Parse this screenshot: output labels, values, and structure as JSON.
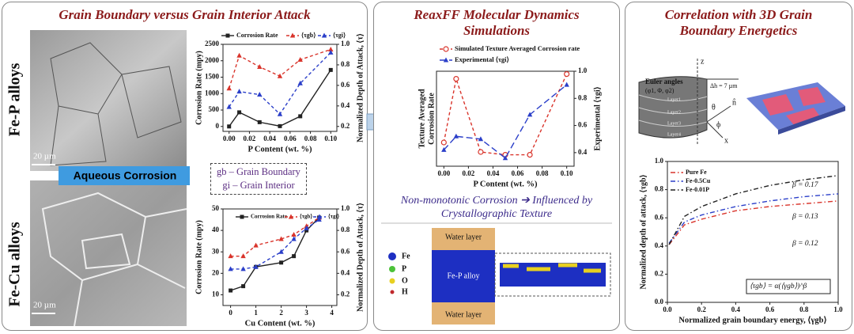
{
  "left": {
    "title": "Grain Boundary versus Grain Interior Attack",
    "micrographs": [
      {
        "label": "Fe-P alloys",
        "scale_bar": "20 µm"
      },
      {
        "label": "Fe-Cu alloys",
        "scale_bar": "20 µm"
      }
    ],
    "banner": "Aqueous Corrosion",
    "key": [
      "gb – Grain Boundary",
      "gi – Grain Interior"
    ],
    "chart_fe_p": {
      "type": "line",
      "x": [
        0,
        0.01,
        0.03,
        0.05,
        0.07,
        0.1
      ],
      "xlabel": "P Content (wt. %)",
      "ylabel": "Corrosion Rate (mpy)",
      "y2label": "Normalized Depth of Attack, ⟨τ⟩",
      "xlim": [
        -0.006,
        0.106
      ],
      "xticks": [
        {
          "value": 0,
          "label": "0.00"
        },
        {
          "value": 0.02,
          "label": "0.02"
        },
        {
          "value": 0.04,
          "label": "0.04"
        },
        {
          "value": 0.06,
          "label": "0.06"
        },
        {
          "value": 0.08,
          "label": "0.08"
        },
        {
          "value": 0.1,
          "label": "0.10"
        }
      ],
      "ylim": [
        -150,
        2500
      ],
      "yticks": [
        0,
        500,
        1000,
        1500,
        2000,
        2500
      ],
      "y2lim": [
        0.152,
        1.0
      ],
      "y2ticks": [
        0.2,
        0.4,
        0.6,
        0.8,
        {
          "value": 1,
          "label": "1.0"
        }
      ],
      "series": [
        {
          "name": "Corrosion Rate",
          "color": "#222222",
          "marker": "square",
          "dash": "solid",
          "values": [
            0,
            430,
            130,
            10,
            310,
            1720
          ]
        },
        {
          "name": "⟨τgb⟩",
          "color": "#d9342b",
          "marker": "triangle",
          "dash": "dashed",
          "axis": "y2",
          "values": [
            0.57,
            0.89,
            0.78,
            0.69,
            0.85,
            0.95
          ]
        },
        {
          "name": "⟨τgi⟩",
          "color": "#2b3fc9",
          "marker": "triangle",
          "dash": "dashed",
          "axis": "y2",
          "values": [
            0.39,
            0.54,
            0.51,
            0.32,
            0.62,
            0.92
          ]
        }
      ]
    },
    "chart_fe_cu": {
      "type": "line",
      "x": [
        0,
        0.5,
        1,
        2,
        2.5,
        3,
        3.5
      ],
      "xlabel": "Cu Content (wt. %)",
      "ylabel": "Corrosion Rate (mpy)",
      "y2label": "Normalized Depth of Attack, ⟨τ⟩",
      "xlim": [
        -0.3,
        4.2
      ],
      "xticks": [
        0,
        1,
        2,
        3,
        4
      ],
      "ylim": [
        5,
        50
      ],
      "yticks": [
        10,
        20,
        30,
        40,
        50
      ],
      "y2lim": [
        0.1,
        1.0
      ],
      "y2ticks": [
        0.2,
        0.4,
        0.6,
        0.8,
        {
          "value": 1,
          "label": "1.0"
        }
      ],
      "series": [
        {
          "name": "Corrosion Rate",
          "color": "#222222",
          "marker": "square",
          "dash": "solid",
          "values": [
            12,
            14,
            23,
            25,
            28,
            40,
            46
          ]
        },
        {
          "name": "⟨τgb⟩",
          "color": "#d9342b",
          "marker": "triangle",
          "dash": "dashed",
          "axis": "y2",
          "values": [
            0.56,
            0.56,
            0.66,
            0.72,
            0.76,
            0.84,
            0.92
          ]
        },
        {
          "name": "⟨τgi⟩",
          "color": "#2b3fc9",
          "marker": "triangle",
          "dash": "dashed",
          "axis": "y2",
          "values": [
            0.44,
            0.44,
            0.46,
            0.6,
            0.72,
            0.82,
            0.9
          ]
        }
      ]
    }
  },
  "middle": {
    "title": [
      "ReaxFF Molecular Dynamics",
      "Simulations"
    ],
    "chart": {
      "type": "line",
      "x": [
        0,
        0.01,
        0.03,
        0.05,
        0.07,
        0.1
      ],
      "xlabel": "P Content (wt. %)",
      "ylabel": [
        "Texture Averaged",
        "Corrosion Rate"
      ],
      "y2label": "Experimental ⟨τgi⟩",
      "xlim": [
        -0.006,
        0.106
      ],
      "xticks": [
        {
          "value": 0,
          "label": "0.00"
        },
        {
          "value": 0.02,
          "label": "0.02"
        },
        {
          "value": 0.04,
          "label": "0.04"
        },
        {
          "value": 0.06,
          "label": "0.06"
        },
        {
          "value": 0.08,
          "label": "0.08"
        },
        {
          "value": 0.1,
          "label": "0.10"
        }
      ],
      "ylim": [
        0,
        1
      ],
      "y2lim": [
        0.3,
        1.0
      ],
      "y2ticks": [
        0.4,
        0.6,
        0.8,
        {
          "value": 1,
          "label": "1.0"
        }
      ],
      "series": [
        {
          "name": "Simulated Texture Averaged Corrosion rate",
          "color": "#d9342b",
          "marker": "open-circle",
          "dash": "dashed",
          "values": [
            0.25,
            0.92,
            0.15,
            0.12,
            0.12,
            0.97
          ]
        },
        {
          "name": "Experimental ⟨τgi⟩",
          "color": "#2b3fc9",
          "marker": "triangle",
          "dash": "longdash",
          "axis": "y2",
          "values": [
            0.42,
            0.52,
            0.5,
            0.36,
            0.68,
            0.9
          ]
        }
      ]
    },
    "caption": [
      "Non-monotonic Corrosion ➔ Influenced by",
      "Crystallographic Texture"
    ],
    "md": {
      "layers": [
        "Water layer",
        "Fe-P alloy",
        "Water layer"
      ],
      "species": [
        "Fe",
        "P",
        "O",
        "H"
      ]
    }
  },
  "right": {
    "title": [
      "Correlation with 3D Grain",
      "Boundary Energetics"
    ],
    "diagram": {
      "euler": "Euler angles",
      "euler_symbols": "(φ1, Φ, φ2)",
      "height": "Δh = 7 µm",
      "layers": [
        "Layer1",
        "Layer2",
        "Layer3",
        "Layer4"
      ],
      "axes": [
        "z",
        "n̂",
        "θ",
        "ϕ",
        "x"
      ]
    },
    "chart": {
      "type": "line",
      "x": [
        0.01,
        0.1,
        0.2,
        0.4,
        0.6,
        0.8,
        1.0
      ],
      "xlabel": "Normalized grain boundary energy, ⟨γgb⟩",
      "ylabel": "Normalized depth of attack, ⟨τgb⟩",
      "xlim": [
        0,
        1
      ],
      "xticks": [
        {
          "value": 0,
          "label": "0.0"
        },
        0.2,
        0.4,
        0.6,
        0.8,
        {
          "value": 1,
          "label": "1.0"
        }
      ],
      "ylim": [
        0,
        1
      ],
      "yticks": [
        {
          "value": 0,
          "label": "0.0"
        },
        0.2,
        0.4,
        0.6,
        0.8,
        {
          "value": 1,
          "label": "1.0"
        }
      ],
      "series": [
        {
          "name": "Pure Fe",
          "color": "#d9342b",
          "marker": "none",
          "dash": "dashdot",
          "values": [
            0.41,
            0.55,
            0.59,
            0.65,
            0.68,
            0.7,
            0.72
          ]
        },
        {
          "name": "Fe-0.5Cu",
          "color": "#2b3fc9",
          "marker": "none",
          "dash": "dashdot",
          "values": [
            0.42,
            0.57,
            0.62,
            0.68,
            0.72,
            0.75,
            0.77
          ]
        },
        {
          "name": "Fe-0.01P",
          "color": "#222222",
          "marker": "none",
          "dash": "dashdot",
          "values": [
            0.41,
            0.61,
            0.68,
            0.77,
            0.83,
            0.87,
            0.9
          ]
        }
      ],
      "annotations": [
        "β = 0.17",
        "β = 0.13",
        "β = 0.12",
        "⟨τgb⟩ = α(⟨γgb⟩)^β"
      ]
    }
  }
}
